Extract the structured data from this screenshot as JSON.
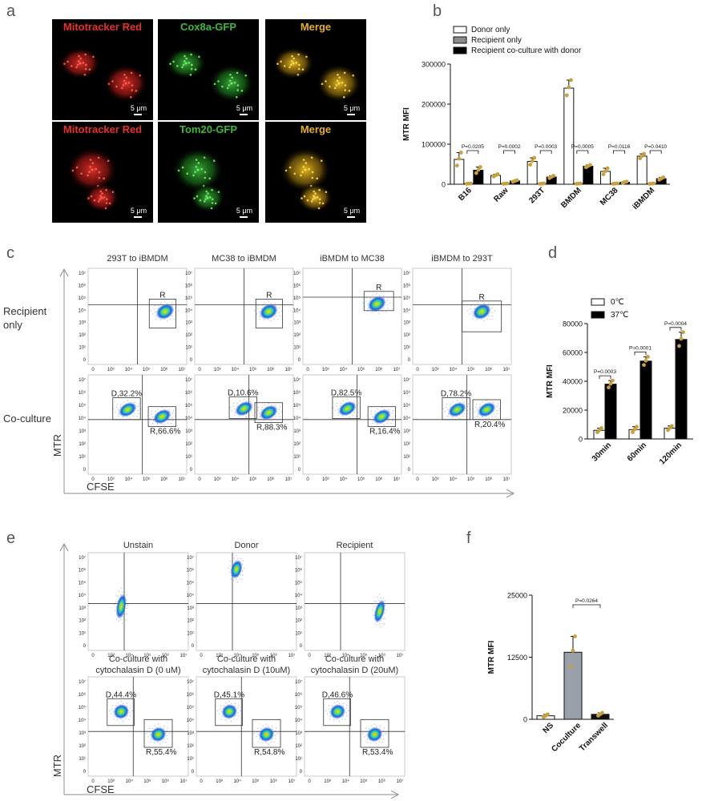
{
  "panels": {
    "a": {
      "letter": "a",
      "row1": [
        "Mitotracker Red",
        "Cox8a-GFP",
        "Merge"
      ],
      "row2": [
        "Mitotracker Red",
        "Tom20-GFP",
        "Merge"
      ],
      "scale": "5 μm"
    },
    "c": {
      "letter": "c",
      "titles": [
        "293T to iBMDM",
        "MC38 to iBMDM",
        "iBMDM to MC38",
        "iBMDM to 293T"
      ],
      "row_labels": [
        "Recipient only",
        "Co-culture"
      ],
      "gate_R": "R",
      "gates": [
        {
          "D": "D,32.2%",
          "R": "R,66.6%"
        },
        {
          "D": "D,10.6%",
          "R": "R,88.3%"
        },
        {
          "D": "D,82.5%",
          "R": "R,16.4%"
        },
        {
          "D": "D,78.2%",
          "R": "R,20.4%"
        }
      ],
      "ylabel": "MTR",
      "xlabel": "CFSE"
    },
    "e": {
      "letter": "e",
      "titles_top": [
        "Unstain",
        "Donor",
        "Recipient"
      ],
      "titles_bottom": [
        [
          "Co-culture with",
          "cytochalasin D (0 uM)"
        ],
        [
          "Co-culture with",
          "cytochalasin D (10uM)"
        ],
        [
          "Co-culture with",
          "cytochalasin D (20uM)"
        ]
      ],
      "gates": [
        {
          "D": "D,44.4%",
          "R": "R,55.4%"
        },
        {
          "D": "D,45.1%",
          "R": "R,54.8%"
        },
        {
          "D": "D,46.6%",
          "R": "R,53.4%"
        }
      ],
      "ylabel": "MTR",
      "xlabel": "CFSE"
    },
    "flow_axis": {
      "y_ticks": [
        "10⁷",
        "10⁶",
        "10⁵",
        "10⁴",
        "10³",
        "10²",
        "10¹",
        "0"
      ],
      "x_ticks": [
        "0",
        "10³",
        "10⁴",
        "10⁵",
        "10⁶",
        "10⁷"
      ]
    }
  },
  "colors": {
    "mitotracker": "#e8312a",
    "gfp": "#3db83a",
    "merge": "#e8b020",
    "dot": "#c8a03c"
  },
  "chart_data": [
    {
      "panel": "b",
      "type": "bar",
      "ylabel": "MTR MFI",
      "ylim": [
        0,
        300000
      ],
      "yticks": [
        "0",
        "100000",
        "200000",
        "300000"
      ],
      "categories": [
        "B16",
        "Raw",
        "293T",
        "BMDM",
        "MC38",
        "iBMDM"
      ],
      "series": [
        {
          "name": "Donor only",
          "values": [
            62000,
            22000,
            57000,
            240000,
            32000,
            70000
          ],
          "err": [
            17000,
            3000,
            9000,
            20000,
            8000,
            6000
          ]
        },
        {
          "name": "Recipient only",
          "values": [
            1500,
            1500,
            1500,
            1500,
            1500,
            1500
          ],
          "err": [
            500,
            500,
            500,
            500,
            500,
            500
          ]
        },
        {
          "name": "Recipient co-culture with donor",
          "values": [
            35000,
            8000,
            18000,
            45000,
            5000,
            14000
          ],
          "err": [
            8000,
            2000,
            3000,
            3000,
            1500,
            3000
          ]
        }
      ],
      "pvalues": [
        "P=0.0205",
        "P=0.0002",
        "P=0.0003",
        "P=0.0005",
        "P=0.0116",
        "P=0.0410"
      ],
      "legend": "top-left"
    },
    {
      "panel": "d",
      "type": "bar",
      "ylabel": "MTR MFI",
      "ylim": [
        0,
        80000
      ],
      "yticks": [
        "0",
        "20000",
        "40000",
        "60000",
        "80000"
      ],
      "categories": [
        "30min",
        "60min",
        "120min"
      ],
      "series": [
        {
          "name": "0℃",
          "values": [
            6000,
            6500,
            7500
          ],
          "err": [
            1500,
            2000,
            1500
          ]
        },
        {
          "name": "37℃",
          "values": [
            38000,
            54000,
            69000
          ],
          "err": [
            2500,
            3000,
            5000
          ]
        }
      ],
      "pvalues": [
        "P=0.0003",
        "P=0.0001",
        "P=0.0004"
      ],
      "legend": "top-left"
    },
    {
      "panel": "f",
      "type": "bar",
      "ylabel": "MTR MFI",
      "ylim": [
        0,
        25000
      ],
      "yticks": [
        "0",
        "12500",
        "25000"
      ],
      "categories": [
        "NS",
        "Coculture",
        "Transwell"
      ],
      "values": [
        700,
        13500,
        1000
      ],
      "err": [
        300,
        3200,
        300
      ],
      "pvalues": [
        "P=0.0264"
      ]
    }
  ]
}
